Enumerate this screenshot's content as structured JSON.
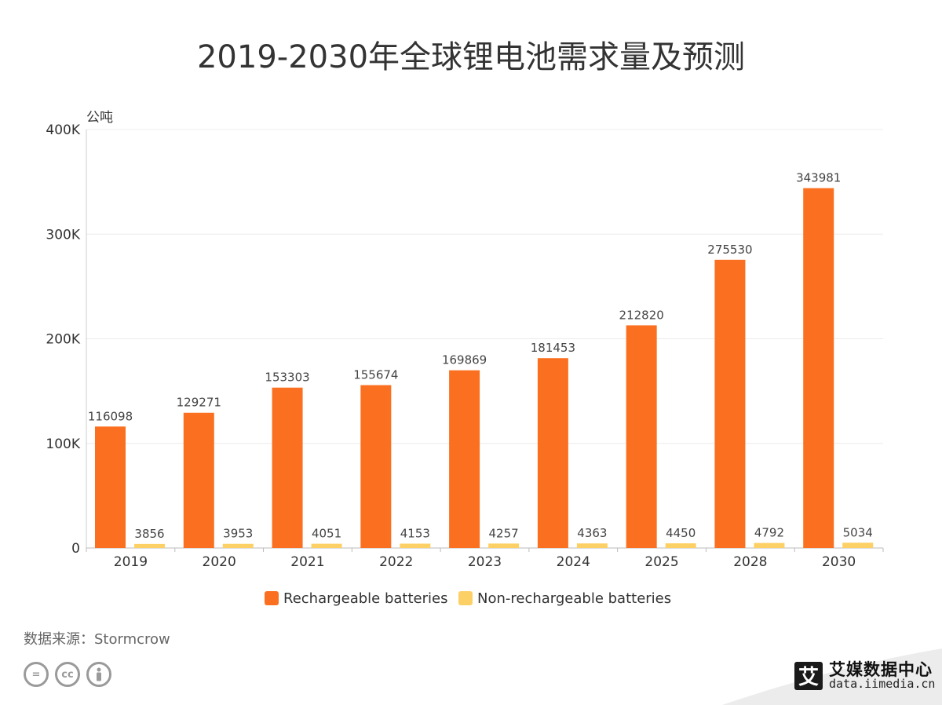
{
  "chart_data": {
    "type": "bar",
    "title": "2019-2030年全球锂电池需求量及预测",
    "ylabel": "公吨",
    "xlabel": "",
    "ylim": [
      0,
      400000
    ],
    "yticks": [
      0,
      100000,
      200000,
      300000,
      400000
    ],
    "ytick_labels": [
      "0",
      "100K",
      "200K",
      "300K",
      "400K"
    ],
    "categories": [
      "2019",
      "2020",
      "2021",
      "2022",
      "2023",
      "2024",
      "2025",
      "2028",
      "2030"
    ],
    "series": [
      {
        "name": "Rechargeable batteries",
        "color": "#fa7020",
        "values": [
          116098,
          129271,
          153303,
          155674,
          169869,
          181453,
          212820,
          275530,
          343981
        ]
      },
      {
        "name": "Non-rechargeable batteries",
        "color": "#fdd065",
        "values": [
          3856,
          3953,
          4051,
          4153,
          4257,
          4363,
          4450,
          4792,
          5034
        ]
      }
    ],
    "grid": true,
    "legend_position": "bottom"
  },
  "source": "数据来源：Stormcrow",
  "license_icons": [
    "equal-icon",
    "cc-icon",
    "person-icon"
  ],
  "brand": {
    "logo_char": "艾",
    "name": "艾媒数据中心",
    "url": "data.iimedia.cn"
  }
}
